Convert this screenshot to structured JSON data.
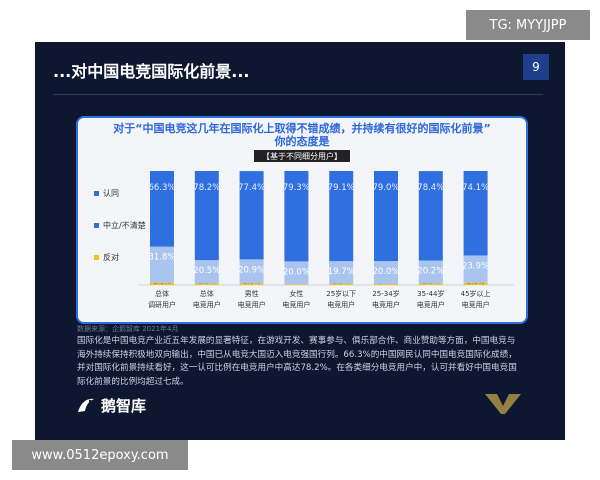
{
  "watermarks": {
    "top": "TG: MYYJJPP",
    "bottom": "www.0512epoxy.com"
  },
  "slide": {
    "title": "...对中国电竞国际化前景...",
    "page_number": "9",
    "question_line1": "对于“中国电竞这几年在国际化上取得不错成绩，并持续有很好的国际化前景”",
    "question_line2": "你的态度是",
    "subtag": "【基于不同细分用户】",
    "source": "数据来源：企鹅智库 2021年4月",
    "body_text": "国际化是中国电竞产业近五年发展的显著特征，在游戏开发、赛事参与、俱乐部合作、商业赞助等方面，中国电竞与海外持续保持积极地双向输出，中国已从电竞大国迈入电竞强国行列。66.3%的中国网民认同中国电竞国际化成绩，并对国际化前景持续看好，这一认可比例在电竞用户中高达78.2%。在各类细分电竞用户中，认可并看好中国电竞国际化前景的比例均超过七成。",
    "logo_text": "鹅智库"
  },
  "colors": {
    "agree": "#2f6fe0",
    "neutral": "#a9c4ee",
    "oppose": "#f2c21d",
    "panel_border": "#2f6fe0",
    "background": "#0d1830"
  },
  "chart_data": {
    "type": "bar",
    "stacked": true,
    "categories": [
      [
        "总体",
        "调研用户"
      ],
      [
        "总体",
        "电竞用户"
      ],
      [
        "男性",
        "电竞用户"
      ],
      [
        "女性",
        "电竞用户"
      ],
      [
        "25岁以下",
        "电竞用户"
      ],
      [
        "25-34岁",
        "电竞用户"
      ],
      [
        "35-44岁",
        "电竞用户"
      ],
      [
        "45岁以上",
        "电竞用户"
      ]
    ],
    "series": [
      {
        "name": "反对",
        "values": [
          1.9,
          1.3,
          1.6,
          0.7,
          1.2,
          1.0,
          1.3,
          2.0
        ],
        "labels": [
          "1.9%",
          "1.3%",
          "1.6%",
          "0.7%",
          "1.2%",
          "1.0%",
          "1.3%",
          "2.0%"
        ]
      },
      {
        "name": "中立/不清楚",
        "values": [
          31.8,
          20.5,
          20.9,
          20.0,
          19.7,
          20.0,
          20.2,
          23.9
        ],
        "labels": [
          "31.8%",
          "20.5%",
          "20.9%",
          "20.0%",
          "19.7%",
          "20.0%",
          "20.2%",
          "23.9%"
        ]
      },
      {
        "name": "认同",
        "values": [
          66.3,
          78.2,
          77.4,
          79.3,
          79.1,
          79.0,
          78.4,
          74.1
        ],
        "labels": [
          "66.3%",
          "78.2%",
          "77.4%",
          "79.3%",
          "79.1%",
          "79.0%",
          "78.4%",
          "74.1%"
        ]
      }
    ],
    "legend": [
      "认同",
      "中立/不清楚",
      "反对"
    ],
    "legend_placement": "left",
    "ylim": [
      0,
      100
    ],
    "grid": false
  }
}
